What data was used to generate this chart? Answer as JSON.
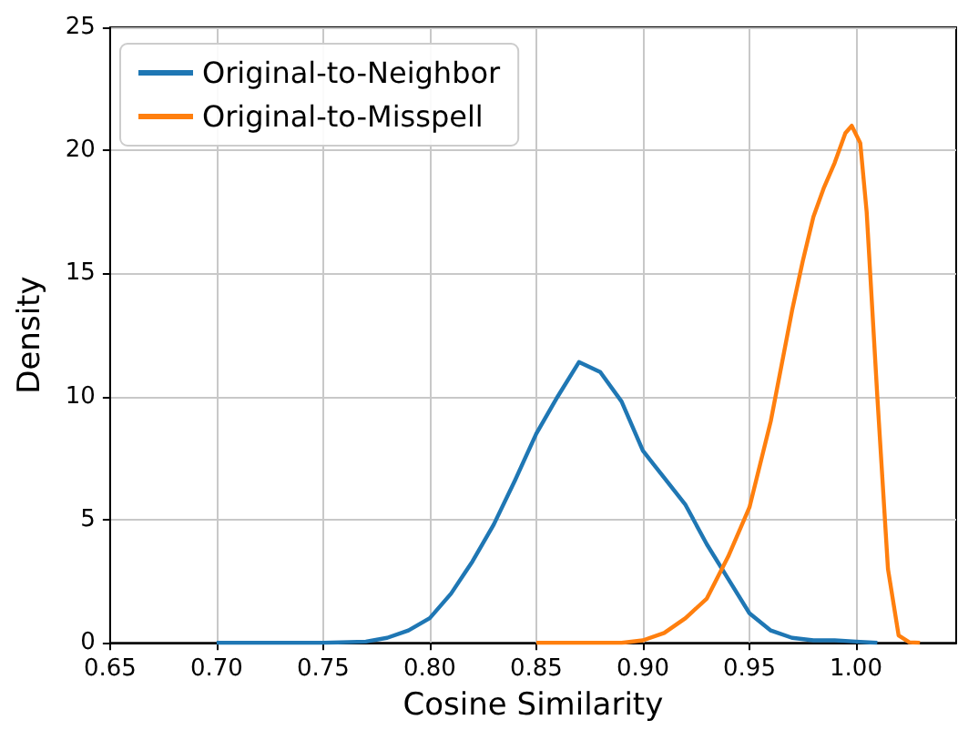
{
  "chart_data": {
    "type": "line",
    "xlabel": "Cosine Similarity",
    "ylabel": "Density",
    "xlim": [
      0.65,
      1.047
    ],
    "ylim": [
      0,
      25
    ],
    "xticks": [
      {
        "value": 0.65,
        "label": "0.65"
      },
      {
        "value": 0.7,
        "label": "0.70"
      },
      {
        "value": 0.75,
        "label": "0.75"
      },
      {
        "value": 0.8,
        "label": "0.80"
      },
      {
        "value": 0.85,
        "label": "0.85"
      },
      {
        "value": 0.9,
        "label": "0.90"
      },
      {
        "value": 0.95,
        "label": "0.95"
      },
      {
        "value": 1.0,
        "label": "1.00"
      }
    ],
    "yticks": [
      0,
      5,
      10,
      15,
      20,
      25
    ],
    "grid": true,
    "legend": "top left",
    "marker": "none",
    "line_style": "solid",
    "series": [
      {
        "name": "Original-to-Neighbor",
        "color": "#1f77b4",
        "x": [
          0.7,
          0.75,
          0.77,
          0.78,
          0.79,
          0.8,
          0.81,
          0.82,
          0.83,
          0.84,
          0.85,
          0.86,
          0.87,
          0.88,
          0.89,
          0.9,
          0.91,
          0.92,
          0.93,
          0.94,
          0.95,
          0.96,
          0.97,
          0.98,
          0.99,
          1.0,
          1.01
        ],
        "values": [
          0,
          0,
          0.05,
          0.2,
          0.5,
          1.0,
          2.0,
          3.3,
          4.8,
          6.6,
          8.5,
          10.0,
          11.4,
          11.0,
          9.8,
          7.8,
          6.7,
          5.6,
          4.0,
          2.6,
          1.2,
          0.5,
          0.2,
          0.1,
          0.1,
          0.05,
          0
        ]
      },
      {
        "name": "Original-to-Misspell",
        "color": "#ff7f0e",
        "x": [
          0.85,
          0.89,
          0.9,
          0.91,
          0.92,
          0.93,
          0.94,
          0.95,
          0.96,
          0.97,
          0.975,
          0.98,
          0.985,
          0.99,
          0.995,
          0.998,
          1.002,
          1.005,
          1.01,
          1.015,
          1.02,
          1.025,
          1.03
        ],
        "values": [
          0,
          0,
          0.1,
          0.4,
          1.0,
          1.8,
          3.5,
          5.5,
          9.0,
          13.5,
          15.5,
          17.3,
          18.5,
          19.5,
          20.7,
          21.0,
          20.3,
          17.5,
          10,
          3.0,
          0.3,
          0.02,
          0
        ]
      }
    ]
  }
}
